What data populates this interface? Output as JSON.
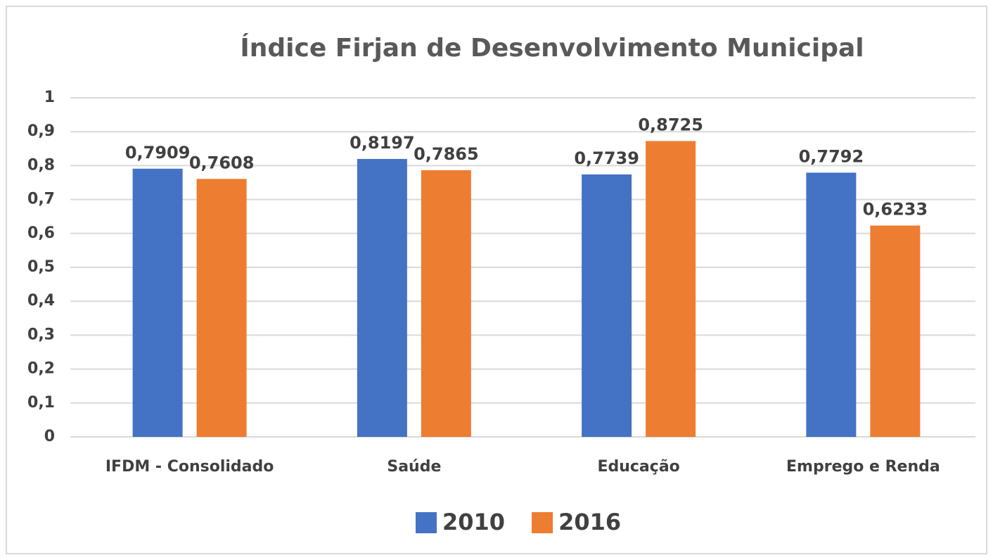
{
  "chart_data": {
    "type": "bar",
    "title": "Índice Firjan de Desenvolvimento Municipal",
    "categories": [
      "IFDM - Consolidado",
      "Saúde",
      "Educação",
      "Emprego e Renda"
    ],
    "series": [
      {
        "name": "2010",
        "color": "#4472c4",
        "values": [
          0.7909,
          0.8197,
          0.7739,
          0.7792
        ],
        "value_labels": [
          "0,7909",
          "0,8197",
          "0,7739",
          "0,7792"
        ]
      },
      {
        "name": "2016",
        "color": "#ed7d31",
        "values": [
          0.7608,
          0.7865,
          0.8725,
          0.6233
        ],
        "value_labels": [
          "0,7608",
          "0,7865",
          "0,8725",
          "0,6233"
        ]
      }
    ],
    "ylim": [
      0,
      1
    ],
    "yticks": [
      0,
      {
        "value": 0.1,
        "label": "0,1"
      },
      {
        "value": 0.2,
        "label": "0,2"
      },
      {
        "value": 0.3,
        "label": "0,3"
      },
      {
        "value": 0.4,
        "label": "0,4"
      },
      {
        "value": 0.5,
        "label": "0,5"
      },
      {
        "value": 0.6,
        "label": "0,6"
      },
      {
        "value": 0.7,
        "label": "0,7"
      },
      {
        "value": 0.8,
        "label": "0,8"
      },
      {
        "value": 0.9,
        "label": "0,9"
      },
      1
    ],
    "grid": true,
    "legend": "bottom"
  }
}
